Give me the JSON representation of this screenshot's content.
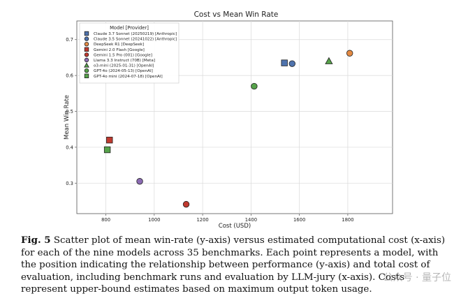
{
  "chart_data": {
    "type": "scatter",
    "title": "Cost vs Mean Win Rate",
    "xlabel": "Cost (USD)",
    "ylabel": "Mean Win Rate",
    "xlim": [
      680,
      1985
    ],
    "ylim": [
      0.215,
      0.752
    ],
    "xticks": [
      800,
      1000,
      1200,
      1400,
      1600,
      1800
    ],
    "yticks": [
      0.3,
      0.4,
      0.5,
      0.6,
      0.7
    ],
    "grid": true,
    "legend_title": "Model [Provider]",
    "legend_position": "top-left",
    "points": [
      {
        "label": "Claude 3.7 Sonnet (20250219) [Anthropic]",
        "x": 1538,
        "y": 0.635,
        "marker": "square",
        "color": "#4f73ad"
      },
      {
        "label": "Claude 3.5 Sonnet (20241022) [Anthropic]",
        "x": 1570,
        "y": 0.633,
        "marker": "circle",
        "color": "#4f73ad"
      },
      {
        "label": "DeepSeek R1 [DeepSeek]",
        "x": 1808,
        "y": 0.662,
        "marker": "circle",
        "color": "#e48a43"
      },
      {
        "label": "Gemini 2.0 Flash [Google]",
        "x": 815,
        "y": 0.42,
        "marker": "square",
        "color": "#c0392f"
      },
      {
        "label": "Gemini 1.5 Pro (001) [Google]",
        "x": 1132,
        "y": 0.241,
        "marker": "circle",
        "color": "#c0392f"
      },
      {
        "label": "Llama 3.3 Instruct (70B) [Meta]",
        "x": 940,
        "y": 0.305,
        "marker": "circle",
        "color": "#8b6bb3"
      },
      {
        "label": "o3-mini (2025-01-31) [OpenAI]",
        "x": 1722,
        "y": 0.64,
        "marker": "triangle",
        "color": "#56a24a"
      },
      {
        "label": "GPT-4o (2024-05-13) [OpenAI]",
        "x": 1413,
        "y": 0.57,
        "marker": "circle",
        "color": "#56a24a"
      },
      {
        "label": "GPT-4o mini (2024-07-18) [OpenAI]",
        "x": 806,
        "y": 0.393,
        "marker": "square",
        "color": "#56a24a"
      }
    ]
  },
  "caption": {
    "label": "Fig. 5",
    "text": "Scatter plot of mean win-rate (y-axis) versus estimated computational cost (x-axis) for each of the nine models across 35 benchmarks. Each point represents a model, with the position indicating the relationship between performance (y-axis) and total cost of evaluation, including benchmark runs and evaluation by LLM-jury (x-axis). Costs represent upper-bound estimates based on maximum output token usage."
  },
  "watermark": "公众号 · 量子位"
}
